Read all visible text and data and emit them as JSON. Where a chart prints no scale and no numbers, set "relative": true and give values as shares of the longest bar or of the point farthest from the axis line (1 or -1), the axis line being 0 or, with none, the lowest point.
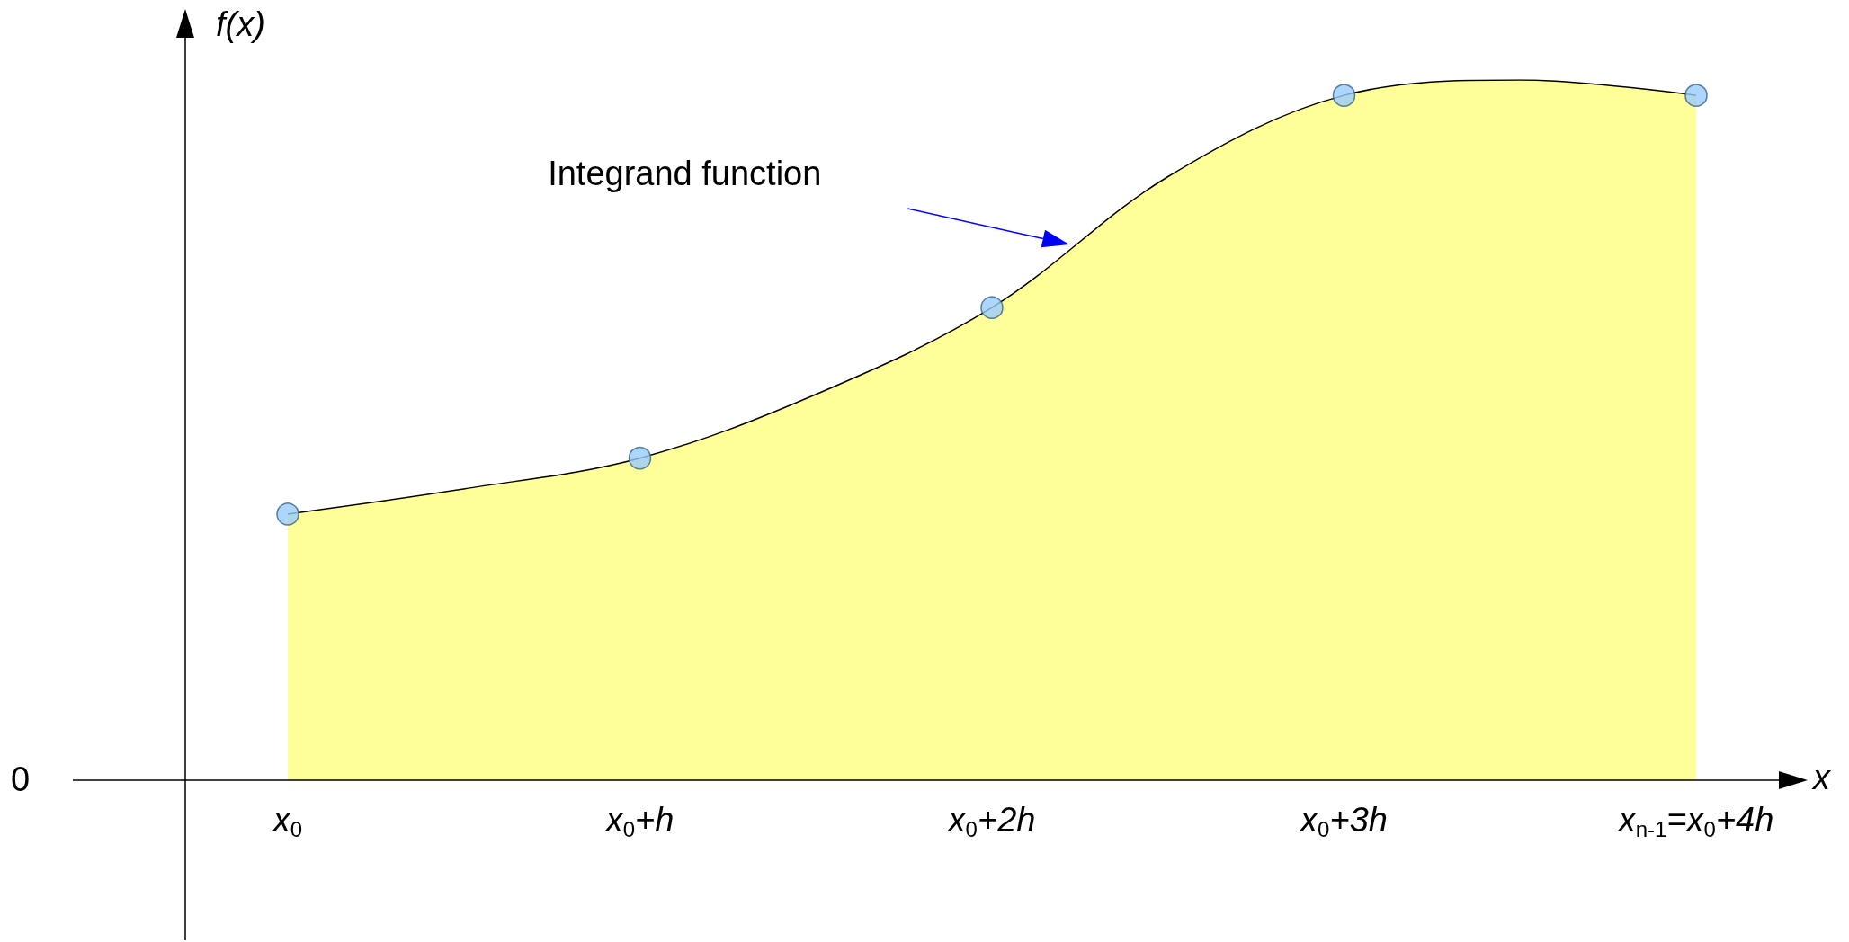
{
  "chart_data": {
    "type": "area",
    "relative": true,
    "xlabel": "x",
    "ylabel": "f(x)",
    "categories": [
      "x$_{0}$",
      null,
      "x$_{0}$+h",
      null,
      "x$_{0}$+2h",
      null,
      "x$_{0}$+3h",
      null,
      "x$_{n-1}$=x$_{0}$+4h"
    ],
    "series": [
      {
        "color": "#ffff99",
        "marker": "none",
        "values": [
          0.38,
          0.416,
          0.46,
          0.551,
          0.675,
          0.862,
          0.978,
          1.0,
          0.978
        ]
      },
      {
        "type": "scatter",
        "color": "#99ccff",
        "marker": "circle",
        "x": [
          "x$_{0}$",
          "x$_{0}$+h",
          "x$_{0}$+2h",
          "x$_{0}$+3h",
          "x$_{n-1}$=x$_{0}$+4h"
        ],
        "values": [
          0.38,
          0.46,
          0.675,
          0.978,
          0.978
        ]
      }
    ],
    "annotations": [
      "Integrand function",
      "0"
    ]
  }
}
